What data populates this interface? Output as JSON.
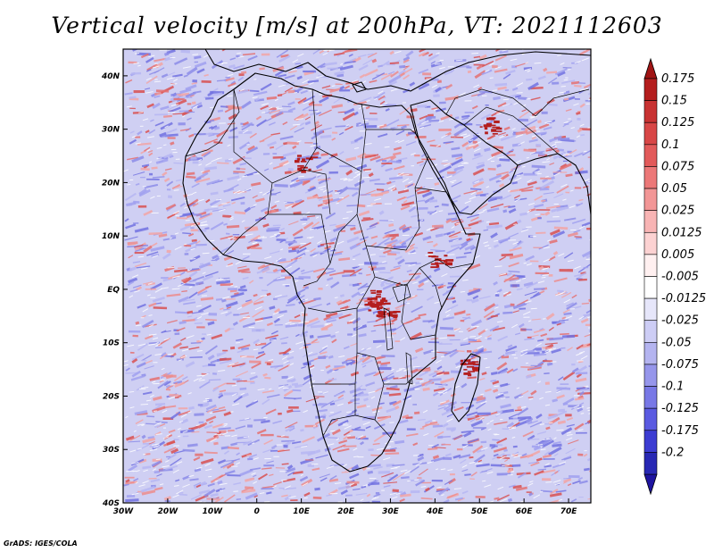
{
  "title": "Vertical velocity [m/s] at 200hPa, VT: 2021112603",
  "credit": "GrADS: IGES/COLA",
  "map": {
    "lon_range": [
      -30,
      75
    ],
    "lat_range": [
      -40,
      45
    ],
    "lon_ticks": [
      {
        "value": -30,
        "label": "30W"
      },
      {
        "value": -20,
        "label": "20W"
      },
      {
        "value": -10,
        "label": "10W"
      },
      {
        "value": 0,
        "label": "0"
      },
      {
        "value": 10,
        "label": "10E"
      },
      {
        "value": 20,
        "label": "20E"
      },
      {
        "value": 30,
        "label": "30E"
      },
      {
        "value": 40,
        "label": "40E"
      },
      {
        "value": 50,
        "label": "50E"
      },
      {
        "value": 60,
        "label": "60E"
      },
      {
        "value": 70,
        "label": "70E"
      }
    ],
    "lat_ticks": [
      {
        "value": 40,
        "label": "40N"
      },
      {
        "value": 30,
        "label": "30N"
      },
      {
        "value": 20,
        "label": "20N"
      },
      {
        "value": 10,
        "label": "10N"
      },
      {
        "value": 0,
        "label": "EQ"
      },
      {
        "value": -10,
        "label": "10S"
      },
      {
        "value": -20,
        "label": "20S"
      },
      {
        "value": -30,
        "label": "30S"
      },
      {
        "value": -40,
        "label": "40S"
      }
    ]
  },
  "colorbar": {
    "levels": [
      {
        "label": "0.175",
        "color": "#b41e1e"
      },
      {
        "label": "0.15",
        "color": "#c83232"
      },
      {
        "label": "0.125",
        "color": "#d84646"
      },
      {
        "label": "0.1",
        "color": "#e25a5a"
      },
      {
        "label": "0.075",
        "color": "#ec7878"
      },
      {
        "label": "0.05",
        "color": "#f29696"
      },
      {
        "label": "0.025",
        "color": "#f8b4b4"
      },
      {
        "label": "0.0125",
        "color": "#fcd2d2"
      },
      {
        "label": "0.005",
        "color": "#fff0f0"
      },
      {
        "label": "-0.005",
        "color": "#ffffff"
      },
      {
        "label": "-0.0125",
        "color": "#e6e6fa"
      },
      {
        "label": "-0.025",
        "color": "#cdcdf5"
      },
      {
        "label": "-0.05",
        "color": "#b4b4f0"
      },
      {
        "label": "-0.075",
        "color": "#9696eb"
      },
      {
        "label": "-0.1",
        "color": "#7878e6"
      },
      {
        "label": "-0.125",
        "color": "#5a5ae1"
      },
      {
        "label": "-0.175",
        "color": "#3c3cd2"
      },
      {
        "label": "-0.2",
        "color": "#2828b4"
      }
    ],
    "top_color": "#a01414",
    "bottom_color": "#1e14a0"
  },
  "field_colors": {
    "up": [
      "#ec8c8c",
      "#f2a5a5",
      "#e47070",
      "#d85050"
    ],
    "down": [
      "#8c8ce8",
      "#a0a0ee",
      "#7272e0",
      "#b6b6f2"
    ],
    "strong_up": "#b41e1e"
  }
}
